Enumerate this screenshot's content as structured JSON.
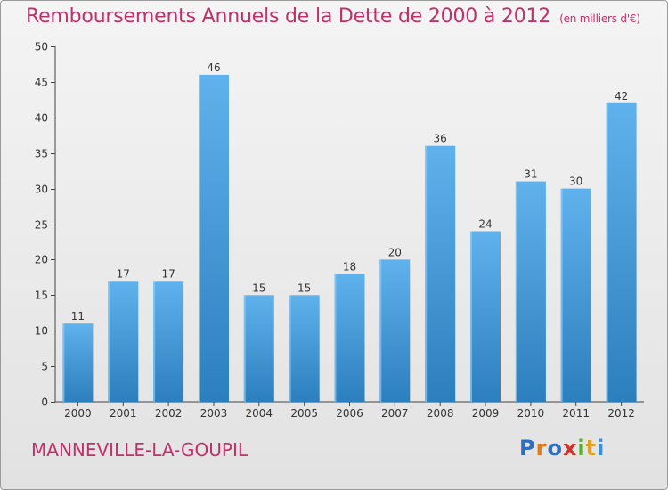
{
  "header": {
    "title": "Remboursements Annuels de la Dette de 2000 à 2012",
    "subtitle": "(en milliers d'€)"
  },
  "footer": {
    "commune": "MANNEVILLE-LA-GOUPIL",
    "logo_text": "Proxiti",
    "logo_colors": [
      "#2f6fc0",
      "#e07a1a",
      "#2f6fc0",
      "#d0322a",
      "#58b030",
      "#e0a020",
      "#3a90d8"
    ]
  },
  "colors": {
    "title": "#c0306a",
    "bar_light": "#5fb2ec",
    "bar_dark": "#2c7fbd",
    "axis": "#444444"
  },
  "chart_data": {
    "type": "bar",
    "title": "Remboursements Annuels de la Dette de 2000 à 2012",
    "subtitle": "(en milliers d'€)",
    "xlabel": "",
    "ylabel": "",
    "categories": [
      "2000",
      "2001",
      "2002",
      "2003",
      "2004",
      "2005",
      "2006",
      "2007",
      "2008",
      "2009",
      "2010",
      "2011",
      "2012"
    ],
    "values": [
      11,
      17,
      17,
      46,
      15,
      15,
      18,
      20,
      36,
      24,
      31,
      30,
      42
    ],
    "ylim": [
      0,
      50
    ],
    "yticks": [
      0,
      5,
      10,
      15,
      20,
      25,
      30,
      35,
      40,
      45,
      50
    ],
    "grid": false,
    "data_labels": true
  }
}
